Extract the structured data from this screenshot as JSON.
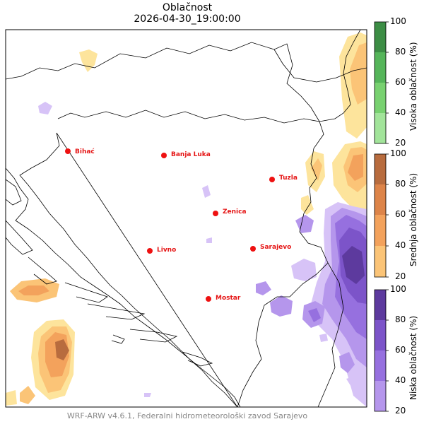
{
  "title": "Oblačnost",
  "timestamp": "2026-04-30_19:00:00",
  "credit": "WRF-ARW v4.6.1, Federalni hidrometeorološki zavod Sarajevo",
  "cities": [
    {
      "name": "Bihać"
    },
    {
      "name": "Banja Luka"
    },
    {
      "name": "Tuzla"
    },
    {
      "name": "Zenica"
    },
    {
      "name": "Livno"
    },
    {
      "name": "Sarajevo"
    },
    {
      "name": "Mostar"
    }
  ],
  "colorbars": [
    {
      "label": "Visoka oblačnost (%)",
      "ticks": [
        "100",
        "80",
        "60",
        "40",
        "20"
      ],
      "colors": [
        "#c7f0c0",
        "#a2e49a",
        "#78d170",
        "#55b55a",
        "#3c8d45"
      ]
    },
    {
      "label": "Srednja oblačnost (%)",
      "ticks": [
        "100",
        "80",
        "60",
        "40",
        "20"
      ],
      "colors": [
        "#fde49c",
        "#fbc477",
        "#f3a25c",
        "#dd8449",
        "#b86c3e"
      ]
    },
    {
      "label": "Niska oblačnost (%)",
      "ticks": [
        "100",
        "80",
        "60",
        "40",
        "20"
      ],
      "colors": [
        "#d7c3f7",
        "#b596ec",
        "#9670df",
        "#7c54c9",
        "#5d3a9e"
      ]
    }
  ],
  "colors": {
    "city_marker": "#ee1111",
    "city_label": "#e51515",
    "credit": "#888888"
  }
}
